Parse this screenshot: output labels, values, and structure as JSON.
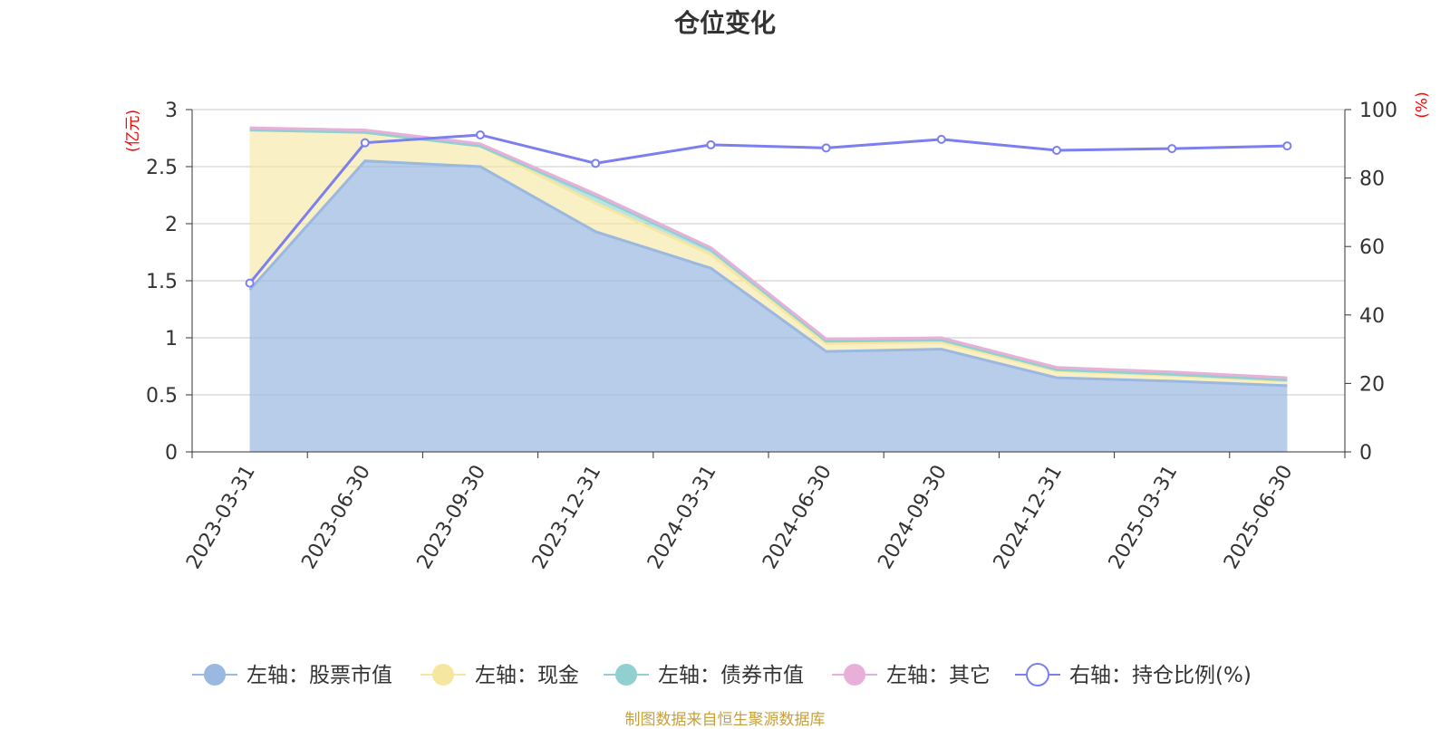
{
  "title": "仓位变化",
  "source_note": "制图数据来自恒生聚源数据库",
  "left_unit": "(亿元)",
  "right_unit": "(%)",
  "colors": {
    "stock": "#9ab8e0",
    "cash": "#f5e6a0",
    "bond": "#90d0d0",
    "other": "#e8b0d8",
    "ratio": "#7b7fef",
    "grid": "#c8c8c8",
    "axis": "#333333"
  },
  "chart_data": {
    "type": "area",
    "categories": [
      "2023-03-31",
      "2023-06-30",
      "2023-09-30",
      "2023-12-31",
      "2024-03-31",
      "2024-06-30",
      "2024-09-30",
      "2024-12-31",
      "2025-03-31",
      "2025-06-30"
    ],
    "left_axis": {
      "ylim": [
        0,
        3
      ],
      "ticks": [
        "0",
        "0.5",
        "1",
        "1.5",
        "2",
        "2.5",
        "3"
      ]
    },
    "right_axis": {
      "ylim": [
        0,
        100
      ],
      "ticks": [
        "0",
        "20",
        "40",
        "60",
        "80",
        "100"
      ]
    },
    "series": [
      {
        "name": "左轴：股票市值",
        "axis": "left",
        "stack": true,
        "key": "stock",
        "values": [
          1.42,
          2.55,
          2.5,
          1.93,
          1.61,
          0.88,
          0.9,
          0.65,
          0.62,
          0.58
        ]
      },
      {
        "name": "左轴：现金",
        "axis": "left",
        "stack": true,
        "key": "cash",
        "values": [
          1.4,
          0.25,
          0.18,
          0.25,
          0.12,
          0.07,
          0.06,
          0.06,
          0.05,
          0.04
        ]
      },
      {
        "name": "左轴：债券市值",
        "axis": "left",
        "stack": true,
        "key": "bond",
        "values": [
          0.0,
          0.0,
          0.0,
          0.06,
          0.04,
          0.02,
          0.02,
          0.01,
          0.01,
          0.01
        ]
      },
      {
        "name": "左轴：其它",
        "axis": "left",
        "stack": true,
        "key": "other",
        "values": [
          0.02,
          0.02,
          0.02,
          0.02,
          0.02,
          0.02,
          0.02,
          0.02,
          0.02,
          0.02
        ]
      },
      {
        "name": "右轴：持仓比例(%)",
        "axis": "right",
        "type": "line",
        "key": "ratio",
        "values": [
          49.3,
          90.3,
          92.6,
          84.3,
          89.7,
          88.8,
          91.3,
          88.1,
          88.6,
          89.4
        ]
      }
    ]
  }
}
